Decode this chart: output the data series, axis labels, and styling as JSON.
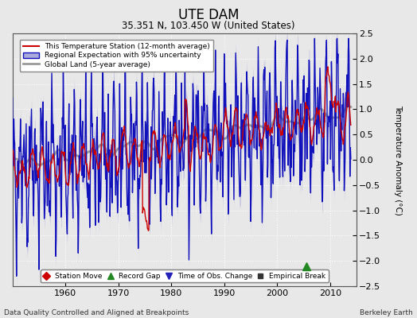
{
  "title": "UTE DAM",
  "subtitle": "35.351 N, 103.450 W (United States)",
  "ylabel": "Temperature Anomaly (°C)",
  "xlabel_note": "Data Quality Controlled and Aligned at Breakpoints",
  "credit": "Berkeley Earth",
  "ylim": [
    -2.5,
    2.5
  ],
  "xlim": [
    1950,
    2015
  ],
  "yticks": [
    -2.5,
    -2,
    -1.5,
    -1,
    -0.5,
    0,
    0.5,
    1,
    1.5,
    2,
    2.5
  ],
  "xticks": [
    1960,
    1970,
    1980,
    1990,
    2000,
    2010
  ],
  "bg_color": "#e8e8e8",
  "grid_color": "#ffffff",
  "station_line_color": "#cc0000",
  "regional_line_color": "#1111bb",
  "regional_fill_color": "#aaaadd",
  "global_line_color": "#999999",
  "record_gap_x": 2005.5,
  "record_gap_y": -2.1,
  "seed": 42
}
